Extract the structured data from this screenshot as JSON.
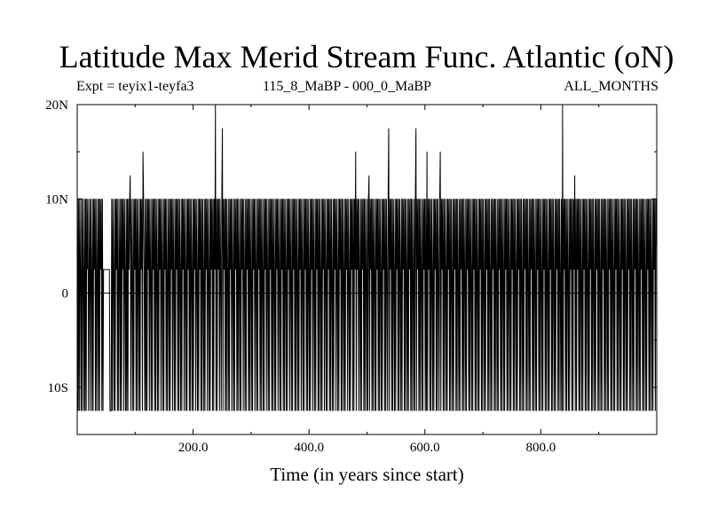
{
  "header": {
    "title": "Latitude Max Merid Stream Func. Atlantic (oN)",
    "expt": "Expt = teyix1-teyfa3",
    "period": "115_8_MaBP - 000_0_MaBP",
    "months": "ALL_MONTHS"
  },
  "chart_data": {
    "type": "line",
    "title": "Latitude Max Merid Stream Func. Atlantic (oN)",
    "xlabel": "Time (in years since start)",
    "ylabel": "",
    "xlim": [
      0,
      1000
    ],
    "ylim": [
      -15,
      20
    ],
    "grid": false,
    "x_ticks": [
      200,
      400,
      600,
      800
    ],
    "x_tick_labels": [
      "200.0",
      "400.0",
      "600.0",
      "800.0"
    ],
    "y_ticks": [
      20,
      10,
      0,
      -10
    ],
    "y_tick_labels": [
      "20N",
      "10N",
      "0",
      "10S"
    ],
    "baseline": 0,
    "discrete_levels": [
      -12.5,
      2.5,
      10
    ],
    "series": [
      {
        "values": [
          10,
          -12.5,
          10,
          -12.5,
          10,
          2.5,
          -12.5,
          10,
          -12.5,
          10,
          2.5,
          -12.5,
          10,
          -12.5,
          10,
          -12.5,
          10,
          2.5,
          10,
          -12.5,
          2.5,
          10,
          -12.5,
          10,
          2.5,
          -12.5,
          10,
          -12.5,
          10,
          2.5,
          10,
          -12.5,
          10,
          -12.5,
          2.5,
          10,
          -12.5,
          10,
          -12.5,
          10,
          2.5,
          10,
          -12.5,
          10,
          -12.5,
          2.5,
          2.5,
          2.5,
          2.5,
          2.5,
          2.5,
          2.5,
          2.5,
          2.5,
          2.5,
          2.5,
          -12.5,
          -12.5,
          -12.5,
          10,
          -12.5,
          10,
          2.5,
          -12.5,
          10,
          -12.5,
          10,
          2.5,
          10,
          -12.5,
          10,
          -12.5,
          2.5,
          10,
          -12.5,
          10,
          -12.5,
          10,
          2.5,
          10,
          -12.5,
          10,
          2.5,
          -12.5,
          10,
          -12.5,
          10,
          -12.5,
          10,
          2.5,
          10,
          12.5,
          -12.5,
          10,
          2.5,
          -12.5,
          10,
          -12.5,
          10,
          2.5,
          10,
          -12.5,
          10,
          -12.5,
          10,
          2.5,
          -12.5,
          10,
          -12.5,
          10,
          2.5,
          10,
          -12.5,
          15,
          10,
          2.5,
          -12.5,
          10,
          -12.5,
          10,
          -12.5,
          10,
          2.5,
          10,
          -12.5,
          10,
          2.5,
          -12.5,
          10,
          -12.5,
          10,
          2.5,
          10,
          -12.5,
          10,
          -12.5,
          10,
          2.5,
          -12.5,
          10,
          -12.5,
          10,
          2.5,
          10,
          -12.5,
          10,
          2.5,
          -12.5,
          10,
          -12.5,
          10,
          2.5,
          10,
          -12.5,
          10,
          -12.5,
          2.5,
          10,
          -12.5,
          10,
          -12.5,
          10,
          2.5,
          10,
          -12.5,
          10,
          2.5,
          -12.5,
          10,
          -12.5,
          10,
          2.5,
          10,
          -12.5,
          10,
          -12.5,
          10,
          2.5,
          -12.5,
          10,
          -12.5,
          10,
          2.5,
          10,
          -12.5,
          10,
          2.5,
          -12.5,
          10,
          -12.5,
          10,
          2.5,
          10,
          -12.5,
          10,
          -12.5,
          10,
          2.5,
          -12.5,
          10,
          -12.5,
          10,
          2.5,
          10,
          -12.5,
          10,
          2.5,
          -12.5,
          10,
          -12.5,
          10,
          2.5,
          10,
          -12.5,
          10,
          -12.5,
          10,
          2.5,
          -12.5,
          10,
          -12.5,
          10,
          2.5,
          10,
          -12.5,
          10,
          2.5,
          -12.5,
          10,
          -12.5,
          10,
          2.5,
          10,
          -12.5,
          10,
          -12.5,
          10,
          2.5,
          20,
          -12.5,
          10,
          -12.5,
          10,
          2.5,
          10,
          -12.5,
          10,
          2.5,
          -12.5,
          10,
          17.5,
          -12.5,
          10,
          2.5,
          10,
          -12.5,
          10,
          -12.5,
          10,
          2.5,
          -12.5,
          10,
          -12.5,
          10,
          2.5,
          10,
          -12.5,
          10,
          2.5,
          -12.5,
          10,
          -12.5,
          10,
          2.5,
          10,
          -12.5,
          10,
          -12.5,
          10,
          2.5,
          -12.5,
          10,
          -12.5,
          10,
          2.5,
          10,
          -12.5,
          10,
          2.5,
          -12.5,
          10,
          -12.5,
          10,
          2.5,
          10,
          -12.5,
          10,
          -12.5,
          10,
          2.5,
          -12.5,
          10,
          -12.5,
          10,
          2.5,
          10,
          -12.5,
          10,
          2.5,
          -12.5,
          10,
          -12.5,
          10,
          2.5,
          10,
          -12.5,
          10,
          -12.5,
          10,
          2.5,
          -12.5,
          10,
          -12.5,
          10,
          2.5,
          10,
          -12.5,
          10,
          2.5,
          -12.5,
          10,
          -12.5,
          10,
          2.5,
          10,
          -12.5,
          10,
          -12.5,
          10,
          2.5,
          -12.5,
          10,
          -12.5,
          10,
          2.5,
          10,
          -12.5,
          10,
          2.5,
          -12.5,
          10,
          -12.5,
          10,
          2.5,
          10,
          -12.5,
          10,
          -12.5,
          10,
          2.5,
          -12.5,
          10,
          -12.5,
          10,
          2.5,
          10,
          -12.5,
          10,
          2.5,
          -12.5,
          10,
          -12.5,
          10,
          2.5,
          10,
          -12.5,
          10,
          -12.5,
          10,
          2.5,
          -12.5,
          10,
          -12.5,
          10,
          2.5,
          10,
          -12.5,
          10,
          2.5,
          -12.5,
          10,
          -12.5,
          10,
          2.5,
          10,
          -12.5,
          10,
          -12.5,
          10,
          2.5,
          -12.5,
          10,
          -12.5,
          10,
          2.5,
          10,
          -12.5,
          10,
          2.5,
          -12.5,
          10,
          -12.5,
          10,
          2.5,
          10,
          -12.5,
          10,
          -12.5,
          10,
          2.5,
          -12.5,
          10,
          -12.5,
          10,
          2.5,
          10,
          -12.5,
          10,
          2.5,
          -12.5,
          10,
          -12.5,
          10,
          2.5,
          10,
          -12.5,
          10,
          -12.5,
          10,
          2.5,
          -12.5,
          10,
          -12.5,
          10,
          2.5,
          10,
          -12.5,
          10,
          2.5,
          -12.5,
          10,
          -12.5,
          10,
          2.5,
          10,
          -12.5,
          10,
          -12.5,
          10,
          2.5,
          -12.5,
          10,
          -12.5,
          10,
          2.5,
          10,
          -12.5,
          10,
          2.5,
          -12.5,
          10,
          -12.5,
          10,
          2.5,
          10,
          -12.5,
          10,
          -12.5,
          10,
          2.5,
          15,
          -12.5,
          10,
          2.5,
          10,
          -12.5,
          10,
          2.5,
          -12.5,
          10,
          -12.5,
          10,
          2.5,
          10,
          -12.5,
          10,
          -12.5,
          10,
          2.5,
          -12.5,
          10,
          -12.5,
          10,
          12.5,
          -12.5,
          10,
          2.5,
          10,
          -12.5,
          10,
          -12.5,
          10,
          2.5,
          -12.5,
          10,
          -12.5,
          10,
          2.5,
          10,
          -12.5,
          10,
          -12.5,
          10,
          2.5,
          -12.5,
          10,
          -12.5,
          10,
          2.5,
          10,
          -12.5,
          10,
          -12.5,
          10,
          2.5,
          -12.5,
          10,
          17.5,
          -12.5,
          10,
          2.5,
          10,
          -12.5,
          10,
          -12.5,
          10,
          2.5,
          -12.5,
          10,
          -12.5,
          10,
          2.5,
          10,
          -12.5,
          10,
          -12.5,
          10,
          2.5,
          -12.5,
          10,
          -12.5,
          10,
          2.5,
          10,
          -12.5,
          10,
          -12.5,
          10,
          2.5,
          -12.5,
          10,
          -12.5,
          10,
          2.5,
          10,
          -12.5,
          10,
          -12.5,
          10,
          2.5,
          -12.5,
          10,
          -12.5,
          10,
          17.5,
          -12.5,
          10,
          2.5,
          10,
          -12.5,
          10,
          -12.5,
          10,
          2.5,
          -12.5,
          10,
          -12.5,
          10,
          2.5,
          10,
          -12.5,
          10,
          -12.5,
          15,
          -12.5,
          10,
          2.5,
          10,
          -12.5,
          10,
          -12.5,
          10,
          2.5,
          -12.5,
          10,
          -12.5,
          10,
          2.5,
          10,
          -12.5,
          10,
          -12.5,
          10,
          2.5,
          -12.5,
          10,
          15,
          -12.5,
          10,
          2.5,
          10,
          -12.5,
          10,
          -12.5,
          10,
          2.5,
          -12.5,
          10,
          -12.5,
          10,
          2.5,
          10,
          -12.5,
          10,
          -12.5,
          10,
          2.5,
          -12.5,
          10,
          -12.5,
          10,
          2.5,
          10,
          -12.5,
          10,
          -12.5,
          10,
          2.5,
          -12.5,
          10,
          -12.5,
          10,
          2.5,
          10,
          -12.5,
          10,
          -12.5,
          10,
          2.5,
          -12.5,
          10,
          -12.5,
          10,
          2.5,
          10,
          -12.5,
          10,
          -12.5,
          10,
          2.5,
          -12.5,
          10,
          -12.5,
          10,
          2.5,
          10,
          -12.5,
          10,
          -12.5,
          10,
          2.5,
          -12.5,
          10,
          -12.5,
          10,
          2.5,
          10,
          -12.5,
          10,
          -12.5,
          10,
          2.5,
          -12.5,
          10,
          -12.5,
          10,
          2.5,
          10,
          -12.5,
          10,
          -12.5,
          10,
          2.5,
          -12.5,
          10,
          -12.5,
          10,
          2.5,
          10,
          -12.5,
          10,
          -12.5,
          10,
          2.5,
          -12.5,
          10,
          -12.5,
          10,
          2.5,
          10,
          -12.5,
          10,
          -12.5,
          10,
          2.5,
          -12.5,
          10,
          -12.5,
          10,
          2.5,
          10,
          -12.5,
          10,
          -12.5,
          10,
          2.5,
          -12.5,
          10,
          -12.5,
          10,
          2.5,
          10,
          -12.5,
          10,
          -12.5,
          10,
          2.5,
          -12.5,
          10,
          -12.5,
          10,
          2.5,
          10,
          -12.5,
          10,
          -12.5,
          10,
          2.5,
          -12.5,
          10,
          -12.5,
          10,
          2.5,
          10,
          -12.5,
          10,
          -12.5,
          10,
          2.5,
          -12.5,
          10,
          -12.5,
          10,
          2.5,
          10,
          -12.5,
          10,
          -12.5,
          10,
          2.5,
          -12.5,
          10,
          -12.5,
          10,
          2.5,
          10,
          -12.5,
          10,
          -12.5,
          10,
          2.5,
          -12.5,
          10,
          -12.5,
          10,
          2.5,
          10,
          -12.5,
          10,
          -12.5,
          10,
          2.5,
          -12.5,
          10,
          -12.5,
          10,
          2.5,
          10,
          -12.5,
          10,
          -12.5,
          10,
          2.5,
          -12.5,
          10,
          -12.5,
          10,
          2.5,
          10,
          -12.5,
          10,
          -12.5,
          10,
          2.5,
          -12.5,
          10,
          -12.5,
          20,
          -12.5,
          10,
          2.5,
          10,
          -12.5,
          10,
          -12.5,
          10,
          2.5,
          -12.5,
          10,
          -12.5,
          10,
          2.5,
          10,
          -12.5,
          10,
          -12.5,
          10,
          2.5,
          12.5,
          -12.5,
          10,
          -12.5,
          10,
          2.5,
          10,
          -12.5,
          10,
          -12.5,
          10,
          2.5,
          -12.5,
          10,
          -12.5,
          10,
          2.5,
          10,
          -12.5,
          10,
          -12.5,
          10,
          2.5,
          -12.5,
          10,
          -12.5,
          10,
          2.5,
          10,
          -12.5,
          10,
          -12.5,
          10,
          2.5,
          -12.5,
          10,
          -12.5,
          10,
          2.5,
          10,
          -12.5,
          10,
          -12.5,
          10,
          2.5,
          -12.5,
          10,
          -12.5,
          10,
          2.5,
          10,
          -12.5,
          10,
          -12.5,
          10,
          2.5,
          -12.5,
          10,
          -12.5,
          10,
          2.5,
          10,
          -12.5,
          10,
          -12.5,
          10,
          2.5,
          -12.5,
          10,
          -12.5,
          10,
          2.5,
          10,
          -12.5,
          10,
          -12.5,
          10,
          2.5,
          -12.5,
          10,
          -12.5,
          10,
          2.5,
          10,
          -12.5,
          10,
          -12.5,
          10,
          2.5,
          -12.5,
          10,
          -12.5,
          10,
          2.5,
          10,
          -12.5,
          10,
          -12.5,
          10,
          2.5,
          -12.5,
          10,
          -12.5,
          10,
          2.5,
          10,
          -12.5,
          10,
          -12.5,
          10,
          2.5,
          -12.5,
          10,
          -12.5,
          10,
          2.5,
          10,
          -12.5,
          10,
          -12.5,
          10,
          2.5,
          -12.5,
          10,
          -12.5,
          10,
          2.5,
          10,
          -12.5,
          10,
          -12.5,
          10,
          2.5,
          -12.5,
          10,
          -12.5,
          10,
          2.5,
          10,
          -12.5,
          10,
          5
        ]
      }
    ]
  }
}
